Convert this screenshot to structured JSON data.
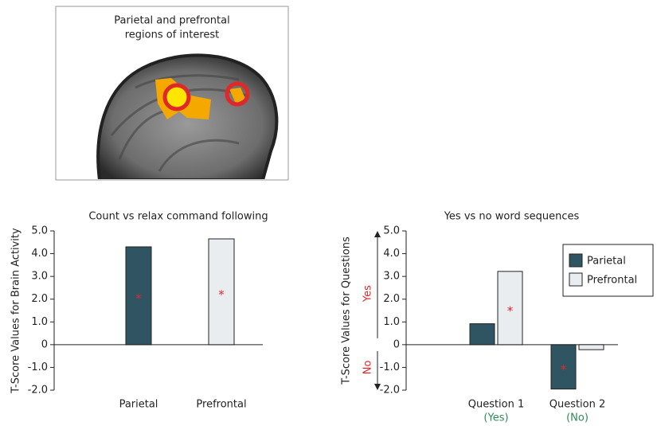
{
  "image_panel": {
    "title": [
      "Parietal and prefrontal",
      "regions of interest"
    ]
  },
  "significance_marker": "*",
  "chart_data": [
    {
      "type": "bar",
      "title": "Count vs relax command following",
      "ylabel": "T-Score Values for Brain Activity",
      "categories": [
        "Parietal",
        "Prefrontal"
      ],
      "values": [
        4.3,
        4.65
      ],
      "colors": [
        "#2f5563",
        "#e9edef"
      ],
      "significant": [
        true,
        true
      ],
      "ylim": [
        -2,
        5
      ],
      "yticks": [
        {
          "value": 5,
          "label": "5.0"
        },
        {
          "value": 4,
          "label": "4.0"
        },
        {
          "value": 3,
          "label": "3.0"
        },
        {
          "value": 2,
          "label": "2.0"
        },
        {
          "value": 1,
          "label": "1.0"
        },
        0,
        {
          "value": -1,
          "label": "-1.0"
        },
        {
          "value": -2,
          "label": "-2.0"
        }
      ]
    },
    {
      "type": "grouped_bar",
      "title": "Yes vs no word sequences",
      "ylabel": "T-Score Values for Questions",
      "direction_labels": {
        "positive": "Yes",
        "negative": "No"
      },
      "categories": [
        "Question 1",
        "Question 2"
      ],
      "category_sublabels": [
        "(Yes)",
        "(No)"
      ],
      "series": [
        {
          "name": "Parietal",
          "color": "#2f5563",
          "values": [
            0.92,
            -1.95
          ],
          "significant": [
            false,
            true
          ]
        },
        {
          "name": "Prefrontal",
          "color": "#e9edef",
          "values": [
            3.22,
            -0.22
          ],
          "significant": [
            true,
            false
          ]
        }
      ],
      "legend": "upper right",
      "ylim": [
        -2,
        5
      ],
      "yticks": [
        {
          "value": 5,
          "label": "5.0"
        },
        {
          "value": 4,
          "label": "4.0"
        },
        {
          "value": 3,
          "label": "3.0"
        },
        {
          "value": 2,
          "label": "2.0"
        },
        {
          "value": 1,
          "label": "1.0"
        },
        0,
        {
          "value": -1,
          "label": "-1.0"
        },
        {
          "value": -2,
          "label": "-2.0"
        }
      ]
    }
  ]
}
